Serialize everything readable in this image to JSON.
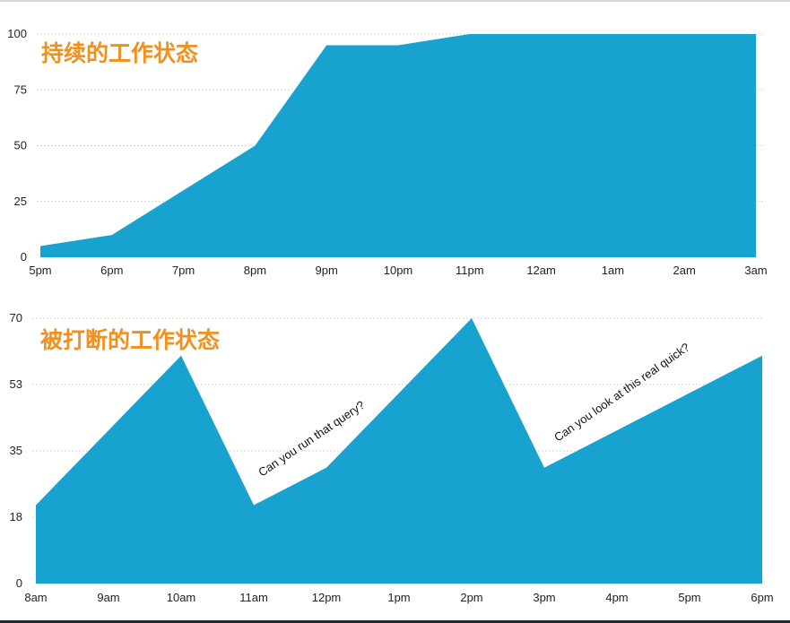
{
  "chart_data": [
    {
      "type": "area",
      "title": "持续的工作状态",
      "categories": [
        "5pm",
        "6pm",
        "7pm",
        "8pm",
        "9pm",
        "10pm",
        "11pm",
        "12am",
        "1am",
        "2am",
        "3am"
      ],
      "values": [
        5,
        10,
        30,
        50,
        95,
        95,
        100,
        100,
        100,
        100,
        100
      ],
      "y_ticks": [
        "0",
        "25",
        "50",
        "75",
        "100"
      ],
      "ylim": [
        0,
        100
      ],
      "grid": true,
      "color": "#17a2d0"
    },
    {
      "type": "area",
      "title": "被打断的工作状态",
      "categories": [
        "8am",
        "9am",
        "10am",
        "11am",
        "12pm",
        "1pm",
        "2pm",
        "3pm",
        "4pm",
        "5pm",
        "6pm"
      ],
      "values": [
        21,
        41,
        61,
        21,
        31,
        51,
        71,
        31,
        41,
        51,
        61
      ],
      "y_ticks": [
        "0",
        "18",
        "35",
        "53",
        "70"
      ],
      "ylim": [
        0,
        71
      ],
      "grid": true,
      "color": "#17a2d0",
      "annotations": [
        "Can you run that query?",
        "Can you look at this real quick?"
      ]
    }
  ]
}
